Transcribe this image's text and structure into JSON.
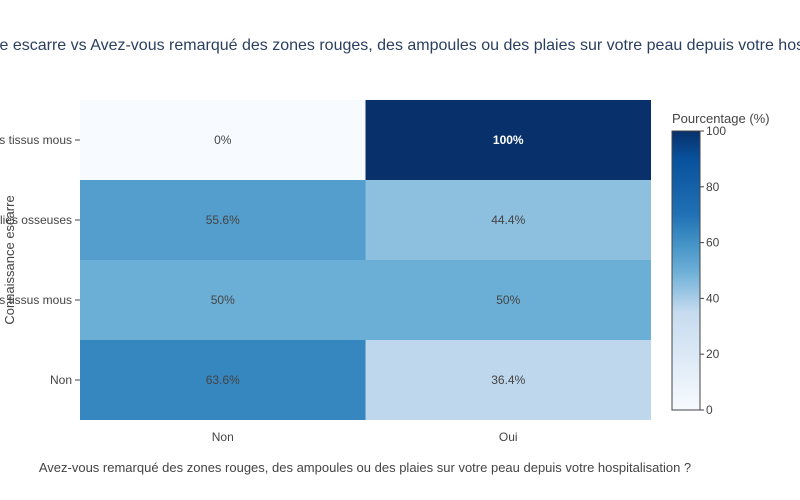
{
  "chart_data": {
    "type": "heatmap",
    "title": "Connaissance escarre vs Avez-vous remarqué des zones rouges, des ampoules ou des plaies sur votre peau depuis votre hospitalisation ?",
    "xlabel": "Avez-vous remarqué des zones rouges, des ampoules ou des plaies sur votre peau depuis votre hospitalisation ?",
    "ylabel": "Connaissance escarre",
    "x_categories": [
      "Non",
      "Oui"
    ],
    "y_categories": [
      "Lésion des tissus mous",
      "Lésion des saillies osseuses",
      "Lésion des tissus mous",
      "Non"
    ],
    "values": [
      [
        0,
        100
      ],
      [
        55.6,
        44.4
      ],
      [
        50,
        50
      ],
      [
        63.6,
        36.4
      ]
    ],
    "cell_labels": [
      [
        "0%",
        "100%"
      ],
      [
        "55.6%",
        "44.4%"
      ],
      [
        "50%",
        "50%"
      ],
      [
        "63.6%",
        "36.4%"
      ]
    ],
    "colorbar": {
      "title": "Pourcentage (%)",
      "range": [
        0,
        100
      ],
      "ticks": [
        "0",
        "20",
        "40",
        "60",
        "80",
        "100"
      ],
      "colorscale": "Blues"
    }
  }
}
